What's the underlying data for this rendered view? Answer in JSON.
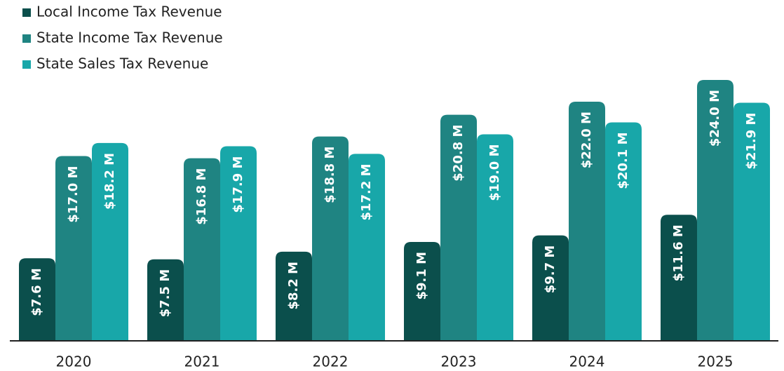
{
  "chart_data": {
    "type": "bar",
    "categories": [
      "2020",
      "2021",
      "2022",
      "2023",
      "2024",
      "2025"
    ],
    "series": [
      {
        "name": "Local Income Tax Revenue",
        "color": "#0b4f4c",
        "values": [
          7.6,
          7.5,
          8.2,
          9.1,
          9.7,
          11.6
        ],
        "value_labels": [
          "$7.6 M",
          "$7.5 M",
          "$8.2 M",
          "$9.1 M",
          "$9.7 M",
          "$11.6 M"
        ]
      },
      {
        "name": "State Income Tax Revenue",
        "color": "#1f8482",
        "values": [
          17.0,
          16.8,
          18.8,
          20.8,
          22.0,
          24.0
        ],
        "value_labels": [
          "$17.0 M",
          "$16.8 M",
          "$18.8 M",
          "$20.8 M",
          "$22.0 M",
          "$24.0 M"
        ]
      },
      {
        "name": "State Sales Tax Revenue",
        "color": "#18a7a9",
        "values": [
          18.2,
          17.9,
          17.2,
          19.0,
          20.1,
          21.9
        ],
        "value_labels": [
          "$18.2 M",
          "$17.9 M",
          "$17.2 M",
          "$19.0 M",
          "$20.1 M",
          "$21.9 M"
        ]
      }
    ]
  }
}
